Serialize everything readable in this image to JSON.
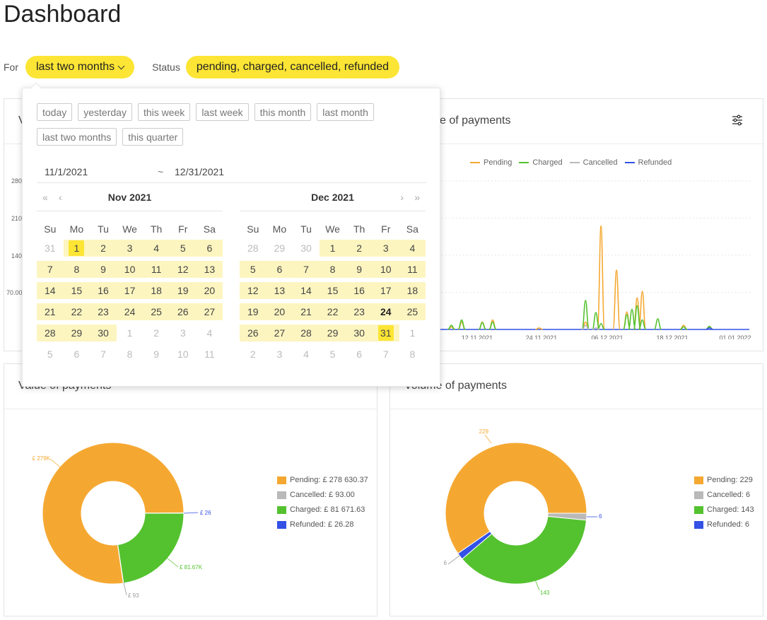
{
  "page": {
    "title": "Dashboard"
  },
  "filters": {
    "for_label": "For",
    "for_value": "last two months",
    "status_label": "Status",
    "status_value": "pending, charged, cancelled, refunded"
  },
  "datepicker": {
    "presets": [
      "today",
      "yesterday",
      "this week",
      "last week",
      "this month",
      "last month",
      "last two months",
      "this quarter"
    ],
    "range_from": "11/1/2021",
    "range_sep": "~",
    "range_to": "12/31/2021",
    "nav": {
      "prev_year": "«",
      "prev_month": "‹",
      "next_month": "›",
      "next_year": "»"
    },
    "weekdays": [
      "Su",
      "Mo",
      "Tu",
      "We",
      "Th",
      "Fr",
      "Sa"
    ],
    "months": [
      {
        "title": "Nov 2021",
        "days": [
          {
            "d": "31",
            "o": true
          },
          {
            "d": "1",
            "s": "edge"
          },
          {
            "d": "2",
            "s": "r"
          },
          {
            "d": "3",
            "s": "r"
          },
          {
            "d": "4",
            "s": "r"
          },
          {
            "d": "5",
            "s": "r"
          },
          {
            "d": "6",
            "s": "r"
          },
          {
            "d": "7",
            "s": "r"
          },
          {
            "d": "8",
            "s": "r"
          },
          {
            "d": "9",
            "s": "r"
          },
          {
            "d": "10",
            "s": "r"
          },
          {
            "d": "11",
            "s": "r"
          },
          {
            "d": "12",
            "s": "r"
          },
          {
            "d": "13",
            "s": "r"
          },
          {
            "d": "14",
            "s": "r"
          },
          {
            "d": "15",
            "s": "r"
          },
          {
            "d": "16",
            "s": "r"
          },
          {
            "d": "17",
            "s": "r"
          },
          {
            "d": "18",
            "s": "r"
          },
          {
            "d": "19",
            "s": "r"
          },
          {
            "d": "20",
            "s": "r"
          },
          {
            "d": "21",
            "s": "r"
          },
          {
            "d": "22",
            "s": "r"
          },
          {
            "d": "23",
            "s": "r"
          },
          {
            "d": "24",
            "s": "r"
          },
          {
            "d": "25",
            "s": "r"
          },
          {
            "d": "26",
            "s": "r"
          },
          {
            "d": "27",
            "s": "r"
          },
          {
            "d": "28",
            "s": "r"
          },
          {
            "d": "29",
            "s": "r"
          },
          {
            "d": "30",
            "s": "r"
          },
          {
            "d": "1",
            "o": true
          },
          {
            "d": "2",
            "o": true
          },
          {
            "d": "3",
            "o": true
          },
          {
            "d": "4",
            "o": true
          },
          {
            "d": "5",
            "o": true
          },
          {
            "d": "6",
            "o": true
          },
          {
            "d": "7",
            "o": true
          },
          {
            "d": "8",
            "o": true
          },
          {
            "d": "9",
            "o": true
          },
          {
            "d": "10",
            "o": true
          },
          {
            "d": "11",
            "o": true
          }
        ]
      },
      {
        "title": "Dec 2021",
        "days": [
          {
            "d": "28",
            "o": true
          },
          {
            "d": "29",
            "o": true
          },
          {
            "d": "30",
            "o": true
          },
          {
            "d": "1",
            "s": "r"
          },
          {
            "d": "2",
            "s": "r"
          },
          {
            "d": "3",
            "s": "r"
          },
          {
            "d": "4",
            "s": "r"
          },
          {
            "d": "5",
            "s": "r"
          },
          {
            "d": "6",
            "s": "r"
          },
          {
            "d": "7",
            "s": "r"
          },
          {
            "d": "8",
            "s": "r"
          },
          {
            "d": "9",
            "s": "r"
          },
          {
            "d": "10",
            "s": "r"
          },
          {
            "d": "11",
            "s": "r"
          },
          {
            "d": "12",
            "s": "r"
          },
          {
            "d": "13",
            "s": "r"
          },
          {
            "d": "14",
            "s": "r"
          },
          {
            "d": "15",
            "s": "r"
          },
          {
            "d": "16",
            "s": "r"
          },
          {
            "d": "17",
            "s": "r"
          },
          {
            "d": "18",
            "s": "r"
          },
          {
            "d": "19",
            "s": "r"
          },
          {
            "d": "20",
            "s": "r"
          },
          {
            "d": "21",
            "s": "r"
          },
          {
            "d": "22",
            "s": "r"
          },
          {
            "d": "23",
            "s": "r"
          },
          {
            "d": "24",
            "s": "r",
            "t": true
          },
          {
            "d": "25",
            "s": "r"
          },
          {
            "d": "26",
            "s": "r"
          },
          {
            "d": "27",
            "s": "r"
          },
          {
            "d": "28",
            "s": "r"
          },
          {
            "d": "29",
            "s": "r"
          },
          {
            "d": "30",
            "s": "r"
          },
          {
            "d": "31",
            "s": "edge"
          },
          {
            "d": "1",
            "o": true
          },
          {
            "d": "2",
            "o": true
          },
          {
            "d": "3",
            "o": true
          },
          {
            "d": "4",
            "o": true
          },
          {
            "d": "5",
            "o": true
          },
          {
            "d": "6",
            "o": true
          },
          {
            "d": "7",
            "o": true
          },
          {
            "d": "8",
            "o": true
          }
        ]
      }
    ]
  },
  "cards": {
    "top_left_title_fragment": "V",
    "top_right_title_fragment": "e of payments",
    "bottom_left_title": "Value of payments",
    "bottom_right_title": "Volume of payments"
  },
  "colors": {
    "pending": "#f5a831",
    "charged": "#54c22f",
    "cancelled": "#b9b9b9",
    "refunded": "#3451e6",
    "accent": "#fce534"
  },
  "chart_data": [
    {
      "type": "line",
      "title": "",
      "y_ticks": [
        "280",
        "210",
        "140",
        "70.00"
      ],
      "x_ticks": [
        "12.11.2021",
        "24.11.2021",
        "06.12.2021",
        "18.12.2021",
        "01.01.2022"
      ],
      "legend": [
        "Pending",
        "Charged",
        "Cancelled",
        "Refunded"
      ],
      "legend_position": "top",
      "series": [
        {
          "name": "Pending",
          "x": [
            "2021-11-07",
            "2021-11-09",
            "2021-11-13",
            "2021-11-15",
            "2021-11-24",
            "2021-12-03",
            "2021-12-06",
            "2021-12-09",
            "2021-12-11",
            "2021-12-13",
            "2021-12-14",
            "2021-12-22",
            "2021-12-27"
          ],
          "y": [
            5,
            14,
            14,
            18,
            3,
            14,
            195,
            112,
            33,
            60,
            72,
            8,
            5
          ]
        },
        {
          "name": "Charged",
          "x": [
            "2021-11-07",
            "2021-11-09",
            "2021-11-13",
            "2021-11-15",
            "2021-12-03",
            "2021-12-05",
            "2021-12-06",
            "2021-12-11",
            "2021-12-12",
            "2021-12-13",
            "2021-12-14",
            "2021-12-17",
            "2021-12-22",
            "2021-12-27"
          ],
          "y": [
            8,
            18,
            13,
            14,
            55,
            32,
            11,
            28,
            38,
            45,
            18,
            20,
            5,
            6
          ]
        },
        {
          "name": "Cancelled",
          "x": [
            "2021-12-03",
            "2021-12-05"
          ],
          "y": [
            8,
            3
          ]
        },
        {
          "name": "Refunded",
          "x": [
            "2021-12-27"
          ],
          "y": [
            3
          ]
        }
      ]
    },
    {
      "type": "pie",
      "title": "Value of payments",
      "labels": [
        "Pending",
        "Cancelled",
        "Charged",
        "Refunded"
      ],
      "values": [
        278630.37,
        93.0,
        81671.63,
        26.28
      ],
      "legend": [
        "Pending: £ 278 630.37",
        "Cancelled: £ 93.00",
        "Charged: £ 81 671.63",
        "Refunded: £ 26.28"
      ],
      "data_labels": [
        "£ 279K",
        "£ 93",
        "£ 81.67K",
        "£ 26"
      ]
    },
    {
      "type": "pie",
      "title": "Volume of payments",
      "labels": [
        "Pending",
        "Cancelled",
        "Charged",
        "Refunded"
      ],
      "values": [
        229,
        6,
        143,
        6
      ],
      "legend": [
        "Pending: 229",
        "Cancelled: 6",
        "Charged: 143",
        "Refunded: 6"
      ],
      "data_labels": [
        "229",
        "6",
        "143",
        "6"
      ]
    }
  ]
}
